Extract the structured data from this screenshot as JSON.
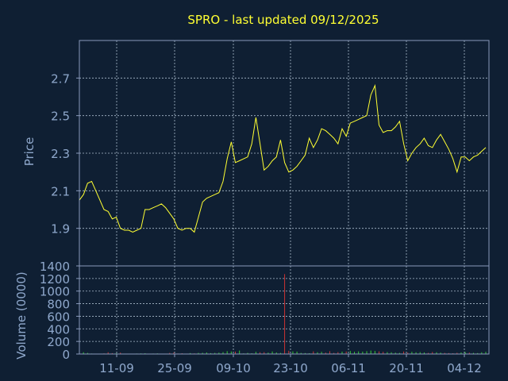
{
  "chart_data": [
    {
      "type": "line",
      "title": "SPRO - last updated 09/12/2025",
      "xlabel": "",
      "ylabel": "Price",
      "ylim": [
        1.7,
        2.9
      ],
      "yticks": [
        "1.9",
        "2.1",
        "2.3",
        "2.5",
        "2.7"
      ],
      "xticks": [
        "11-09",
        "25-09",
        "09-10",
        "23-10",
        "06-11",
        "20-11",
        "04-12"
      ],
      "grid": true,
      "series": [
        {
          "values": [
            2.05,
            2.08,
            2.14,
            2.15,
            2.1,
            2.05,
            2.0,
            1.99,
            1.95,
            1.96,
            1.9,
            1.89,
            1.89,
            1.88,
            1.89,
            1.9,
            2.0,
            2.0,
            2.01,
            2.02,
            2.03,
            2.01,
            1.98,
            1.95,
            1.9,
            1.89,
            1.9,
            1.9,
            1.88,
            1.96,
            2.04,
            2.06,
            2.07,
            2.08,
            2.09,
            2.15,
            2.27,
            2.36,
            2.25,
            2.26,
            2.27,
            2.28,
            2.35,
            2.49,
            2.35,
            2.21,
            2.23,
            2.26,
            2.28,
            2.37,
            2.25,
            2.2,
            2.21,
            2.23,
            2.26,
            2.29,
            2.38,
            2.33,
            2.37,
            2.43,
            2.42,
            2.4,
            2.38,
            2.35,
            2.43,
            2.39,
            2.46,
            2.47,
            2.48,
            2.49,
            2.5,
            2.61,
            2.66,
            2.45,
            2.41,
            2.42,
            2.42,
            2.44,
            2.47,
            2.35,
            2.26,
            2.3,
            2.33,
            2.35,
            2.38,
            2.34,
            2.33,
            2.37,
            2.4,
            2.36,
            2.32,
            2.27,
            2.2,
            2.28,
            2.28,
            2.26,
            2.28,
            2.29,
            2.31,
            2.33
          ],
          "color": "#ffff33"
        }
      ]
    },
    {
      "type": "bar",
      "xlabel": "",
      "ylabel": "Volume (0000)",
      "ylim": [
        0,
        1400
      ],
      "yticks": [
        "0",
        "200",
        "400",
        "600",
        "800",
        "1000",
        "1200",
        "1400"
      ],
      "grid": true,
      "series": [
        {
          "values": [
            12,
            28,
            18,
            8,
            4,
            6,
            10,
            28,
            14,
            12,
            22,
            5,
            3,
            6,
            8,
            10,
            12,
            5,
            8,
            10,
            6,
            4,
            18,
            22,
            8,
            12,
            6,
            15,
            10,
            18,
            20,
            25,
            14,
            18,
            22,
            30,
            45,
            40,
            38,
            55,
            10,
            18,
            12,
            35,
            28,
            30,
            22,
            40,
            25,
            18,
            1270,
            52,
            42,
            38,
            18,
            15,
            12,
            42,
            28,
            35,
            22,
            45,
            18,
            30,
            38,
            40,
            48,
            35,
            42,
            38,
            45,
            55,
            48,
            42,
            35,
            30,
            28,
            22,
            18,
            40,
            22,
            35,
            28,
            30,
            25,
            18,
            32,
            28,
            22,
            18,
            15,
            12,
            20,
            25,
            30,
            22,
            18,
            15,
            28,
            35
          ],
          "colors": {
            "up": "#33cc33",
            "down": "#cc3333"
          }
        }
      ]
    }
  ],
  "colors": {
    "background": "#0f1f33",
    "frame": "#8899bb",
    "grid": "#aabbcc",
    "title": "#ffff33",
    "axis_text": "#8fa8cc"
  }
}
